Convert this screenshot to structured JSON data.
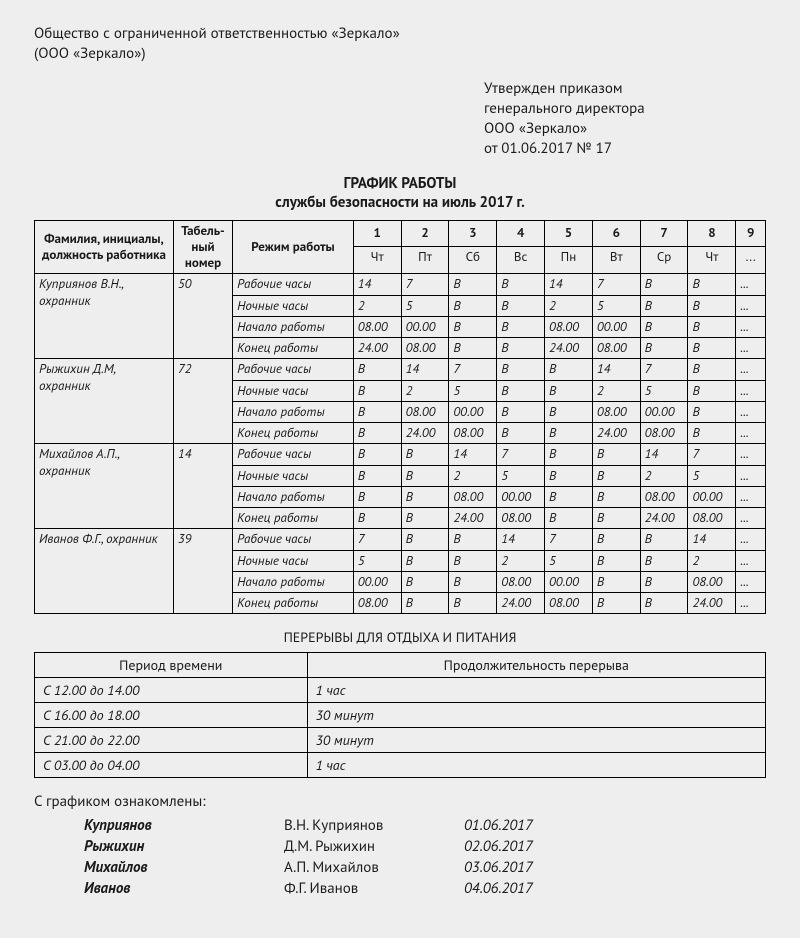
{
  "org": {
    "line1": "Общество с ограниченной ответственностью «Зеркало»",
    "line2": "(ООО «Зеркало»)"
  },
  "approval": {
    "line1": "Утвержден приказом",
    "line2": "генерального директора",
    "line3": "ООО «Зеркало»",
    "line4": "от 01.06.2017 № 17"
  },
  "title": {
    "main": "ГРАФИК РАБОТЫ",
    "sub": "службы безопасности на июль 2017 г."
  },
  "schedule": {
    "col_name": "Фамилия, инициалы, должность работника",
    "col_id": "Табель-\nный номер",
    "col_mode": "Режим работы",
    "day_nums": [
      "1",
      "2",
      "3",
      "4",
      "5",
      "6",
      "7",
      "8",
      "9"
    ],
    "day_dow": [
      "Чт",
      "Пт",
      "Сб",
      "Вс",
      "Пн",
      "Вт",
      "Ср",
      "Чт",
      "..."
    ],
    "mode_labels": [
      "Рабочие часы",
      "Ночные часы",
      "Начало работы",
      "Конец работы"
    ],
    "employees": [
      {
        "name": "Куприянов В.Н., охранник",
        "tab": "50",
        "rows": [
          [
            "14",
            "7",
            "В",
            "В",
            "14",
            "7",
            "В",
            "В",
            "..."
          ],
          [
            "2",
            "5",
            "В",
            "В",
            "2",
            "5",
            "В",
            "В",
            "..."
          ],
          [
            "08.00",
            "00.00",
            "В",
            "В",
            "08.00",
            "00.00",
            "В",
            "В",
            "..."
          ],
          [
            "24.00",
            "08.00",
            "В",
            "В",
            "24.00",
            "08.00",
            "В",
            "В",
            "..."
          ]
        ]
      },
      {
        "name": "Рыжихин Д.М, охранник",
        "tab": "72",
        "rows": [
          [
            "В",
            "14",
            "7",
            "В",
            "В",
            "14",
            "7",
            "В",
            "..."
          ],
          [
            "В",
            "2",
            "5",
            "В",
            "В",
            "2",
            "5",
            "В",
            "..."
          ],
          [
            "В",
            "08.00",
            "00.00",
            "В",
            "В",
            "08.00",
            "00.00",
            "В",
            "..."
          ],
          [
            "В",
            "24.00",
            "08.00",
            "В",
            "В",
            "24.00",
            "08.00",
            "В",
            "..."
          ]
        ]
      },
      {
        "name": "Михайлов А.П., охранник",
        "tab": "14",
        "rows": [
          [
            "В",
            "В",
            "14",
            "7",
            "В",
            "В",
            "14",
            "7",
            "..."
          ],
          [
            "В",
            "В",
            "2",
            "5",
            "В",
            "В",
            "2",
            "5",
            "..."
          ],
          [
            "В",
            "В",
            "08.00",
            "00.00",
            "В",
            "В",
            "08.00",
            "00.00",
            "..."
          ],
          [
            "В",
            "В",
            "24.00",
            "08.00",
            "В",
            "В",
            "24.00",
            "08.00",
            "..."
          ]
        ]
      },
      {
        "name": "Иванов Ф.Г., охранник",
        "tab": "39",
        "rows": [
          [
            "7",
            "В",
            "В",
            "14",
            "7",
            "В",
            "В",
            "14",
            "..."
          ],
          [
            "5",
            "В",
            "В",
            "2",
            "5",
            "В",
            "В",
            "2",
            "..."
          ],
          [
            "00.00",
            "В",
            "В",
            "08.00",
            "00.00",
            "В",
            "В",
            "08.00",
            "..."
          ],
          [
            "08.00",
            "В",
            "В",
            "24.00",
            "08.00",
            "В",
            "В",
            "24.00",
            "..."
          ]
        ]
      }
    ]
  },
  "breaks": {
    "title": "ПЕРЕРЫВЫ ДЛЯ ОТДЫХА И ПИТАНИЯ",
    "col_period": "Период времени",
    "col_duration": "Продолжительность перерыва",
    "rows": [
      {
        "period": "С 12.00 до 14.00",
        "dur": "1 час"
      },
      {
        "period": "С 16.00 до 18.00",
        "dur": "30 минут"
      },
      {
        "period": "С 21.00 до 22.00",
        "dur": "30 минут"
      },
      {
        "period": "С 03.00 до 04.00",
        "dur": "1 час"
      }
    ]
  },
  "ack": {
    "title": "С графиком ознакомлены:",
    "rows": [
      {
        "sig": "Куприянов",
        "full": "В.Н. Куприянов",
        "date": "01.06.2017"
      },
      {
        "sig": "Рыжихин",
        "full": "Д.М. Рыжихин",
        "date": "02.06.2017"
      },
      {
        "sig": "Михайлов",
        "full": "А.П. Михайлов",
        "date": "03.06.2017"
      },
      {
        "sig": "Иванов",
        "full": "Ф.Г. Иванов",
        "date": "04.06.2017"
      }
    ]
  },
  "styling": {
    "page_bg": "#eeeeee",
    "text_color": "#1a1a1a",
    "border_color": "#000000",
    "base_fontsize": 15,
    "table_fontsize": 13,
    "name_col_w": 122,
    "id_col_w": 52,
    "mode_col_w": 106,
    "day_col_w": 42,
    "last_col_w": 26
  }
}
